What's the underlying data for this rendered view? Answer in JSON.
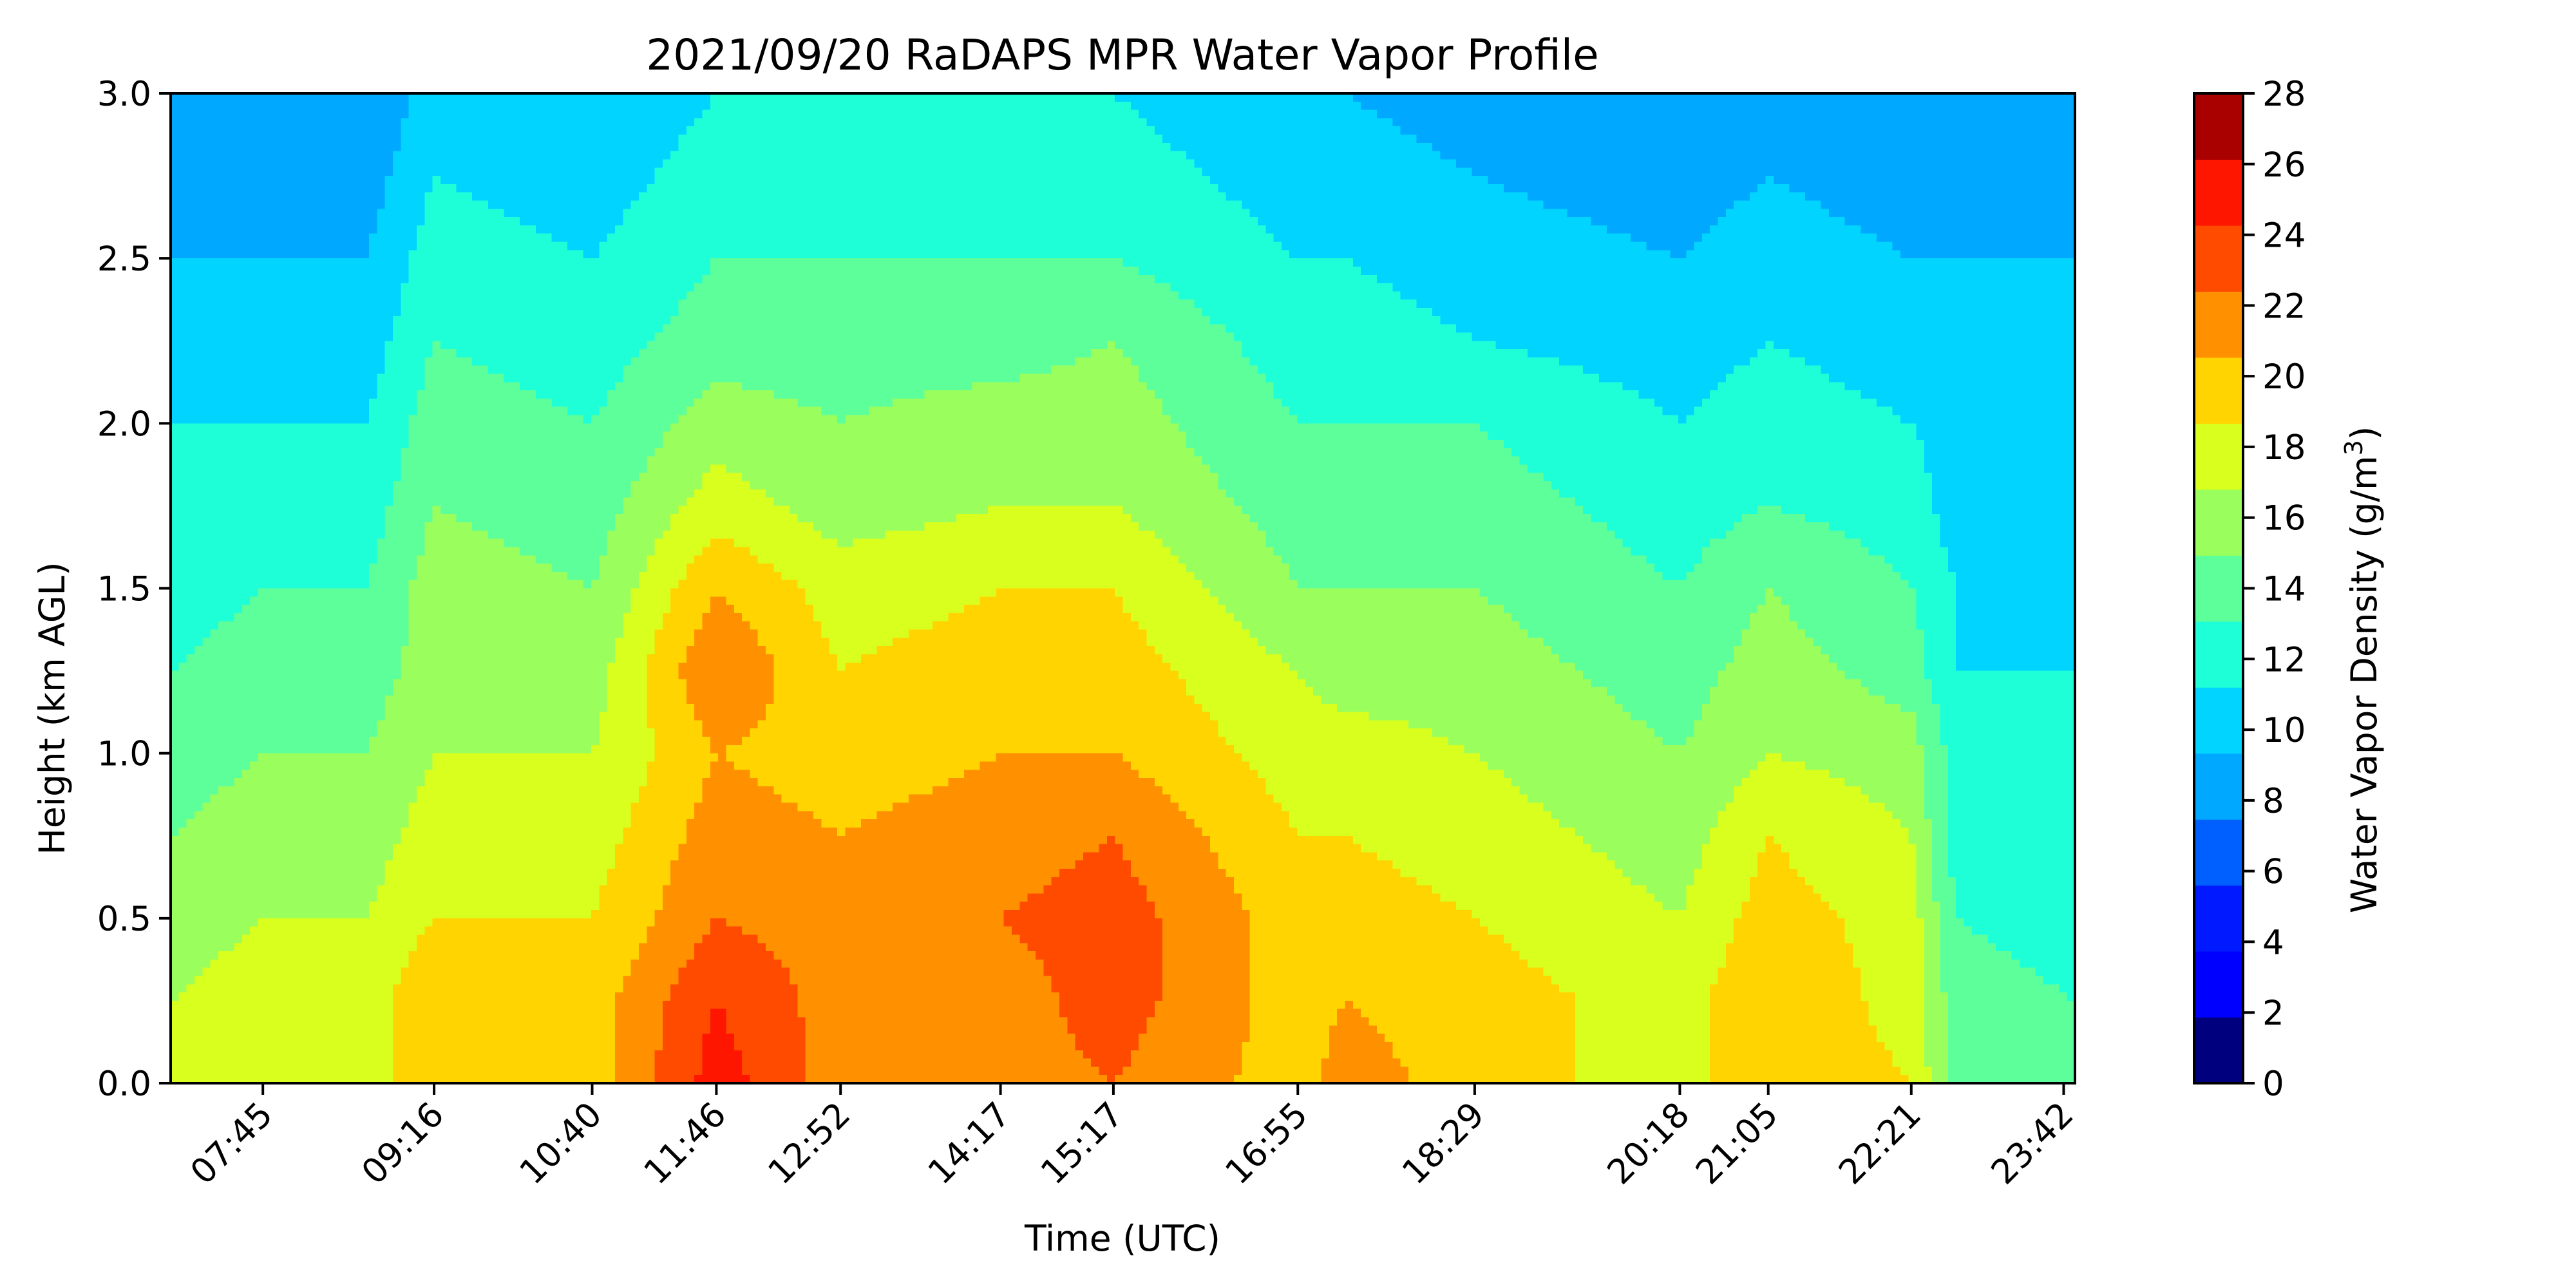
{
  "chart_data": {
    "type": "heatmap",
    "subtype": "filled-contour",
    "title": "2021/09/20 RaDAPS MPR Water Vapor Profile",
    "xlabel": "Time (UTC)",
    "ylabel": "Height (km AGL)",
    "x_time_range": [
      "06:56",
      "23:48"
    ],
    "xticks": [
      "07:45",
      "09:16",
      "10:40",
      "11:46",
      "12:52",
      "14:17",
      "15:17",
      "16:55",
      "18:29",
      "20:18",
      "21:05",
      "22:21",
      "23:42"
    ],
    "yticks": [
      "0.0",
      "0.5",
      "1.0",
      "1.5",
      "2.0",
      "2.5",
      "3.0"
    ],
    "ylim": [
      0,
      3
    ],
    "colorbar": {
      "label": "Water Vapor Density (g/m³)",
      "label_base": "Water Vapor Density (g/m",
      "label_sup": "3",
      "label_end": ")",
      "levels": [
        0,
        2,
        4,
        6,
        8,
        10,
        12,
        14,
        16,
        18,
        20,
        22,
        24,
        26,
        28
      ],
      "tick_labels": [
        "0",
        "2",
        "4",
        "6",
        "8",
        "10",
        "12",
        "14",
        "16",
        "18",
        "20",
        "22",
        "24",
        "26",
        "28"
      ],
      "colors": [
        "#00007f",
        "#0000ff",
        "#0019ff",
        "#0060ff",
        "#00a8ff",
        "#00d4ff",
        "#1effd8",
        "#5dff9a",
        "#9aff5d",
        "#d8ff1e",
        "#ffd400",
        "#ff9100",
        "#ff4b00",
        "#ff1600",
        "#a90000"
      ]
    },
    "colormap": "jet",
    "contour_line_color": "#000000",
    "profile_times": [
      "06:56",
      "07:45",
      "08:40",
      "09:16",
      "10:40",
      "11:46",
      "12:52",
      "14:17",
      "15:17",
      "16:55",
      "17:20",
      "18:29",
      "20:18",
      "21:05",
      "22:21",
      "22:45",
      "23:48"
    ],
    "profile_heights_km": [
      0.0,
      0.25,
      0.5,
      0.75,
      1.0,
      1.25,
      1.5,
      1.75,
      2.0,
      2.25,
      2.5,
      2.75,
      3.0
    ],
    "density_g_m3": [
      [
        19,
        18,
        17,
        16,
        15,
        14,
        13,
        12,
        12,
        11,
        10,
        9,
        9
      ],
      [
        19,
        19,
        18,
        17,
        16,
        15,
        14,
        13,
        12,
        11,
        10,
        9,
        9
      ],
      [
        19,
        19,
        18,
        17,
        16,
        15,
        14,
        13,
        12,
        11,
        10,
        9,
        8
      ],
      [
        22,
        22,
        20,
        19,
        18,
        17,
        17,
        16,
        15,
        14,
        13,
        12,
        11
      ],
      [
        21,
        21,
        20,
        19,
        18,
        17,
        16,
        15,
        14,
        13,
        12,
        11,
        10
      ],
      [
        27,
        26,
        24,
        23,
        22,
        24,
        22,
        19,
        17,
        15,
        14,
        13,
        12
      ],
      [
        23,
        23,
        23,
        22,
        21,
        20,
        19,
        17,
        16,
        15,
        14,
        13,
        12
      ],
      [
        23,
        23,
        24,
        23,
        22,
        21,
        20,
        18,
        17,
        15,
        14,
        13,
        12
      ],
      [
        24,
        25,
        25,
        24,
        22,
        21,
        20,
        18,
        17,
        16,
        14,
        13,
        12
      ],
      [
        21,
        21,
        21,
        20,
        19,
        18,
        16,
        15,
        14,
        13,
        12,
        11,
        10
      ],
      [
        23,
        22,
        21,
        20,
        19,
        17,
        16,
        15,
        14,
        13,
        12,
        11,
        10
      ],
      [
        21,
        21,
        20,
        19,
        18,
        17,
        16,
        15,
        14,
        12,
        11,
        10,
        9
      ],
      [
        19,
        19,
        18,
        17,
        16,
        15,
        14,
        13,
        12,
        11,
        10,
        9,
        8
      ],
      [
        22,
        22,
        21,
        20,
        18,
        17,
        16,
        14,
        13,
        12,
        11,
        10,
        9
      ],
      [
        20,
        19,
        19,
        18,
        17,
        15,
        14,
        13,
        12,
        11,
        10,
        9,
        8
      ],
      [
        15,
        15,
        14,
        13,
        13,
        12,
        12,
        11,
        11,
        10,
        10,
        9,
        9
      ],
      [
        14,
        14,
        13,
        13,
        12,
        12,
        11,
        11,
        11,
        10,
        10,
        10,
        9
      ]
    ]
  }
}
